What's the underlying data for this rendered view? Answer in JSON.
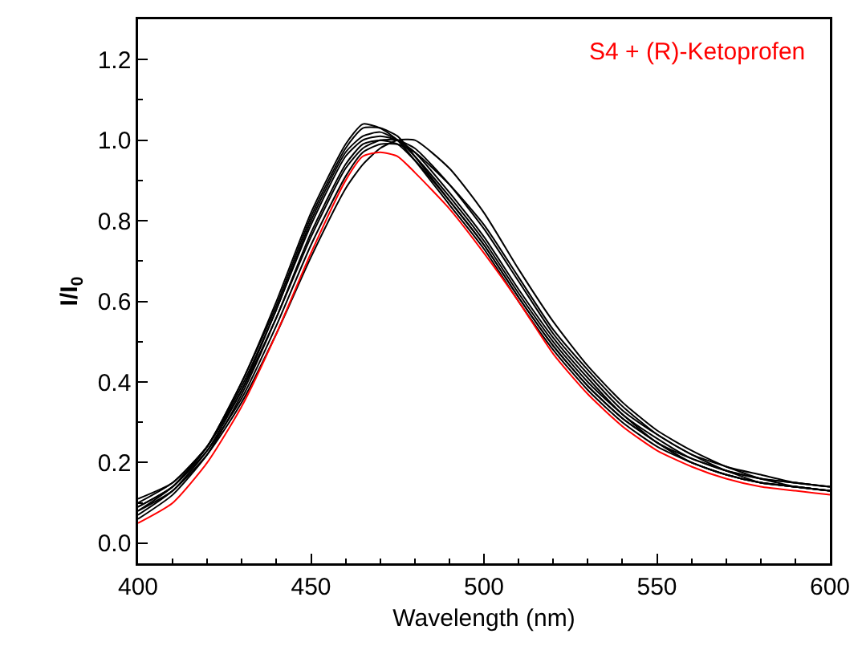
{
  "chart_data": {
    "type": "line",
    "xlabel": "Wavelength (nm)",
    "ylabel": "I/I$_{0}$",
    "x": [
      400,
      410,
      420,
      430,
      440,
      450,
      460,
      465,
      470,
      475,
      480,
      490,
      500,
      510,
      520,
      530,
      540,
      550,
      560,
      570,
      580,
      590,
      600
    ],
    "xlim": [
      400,
      600
    ],
    "xticks": [
      400,
      450,
      500,
      550,
      600
    ],
    "ylim": [
      -0.05,
      1.3
    ],
    "yticks": [
      {
        "value": 0,
        "label": "0.0"
      },
      {
        "value": 0.2,
        "label": "0.2"
      },
      {
        "value": 0.4,
        "label": "0.4"
      },
      {
        "value": 0.6,
        "label": "0.6"
      },
      {
        "value": 0.8,
        "label": "0.8"
      },
      {
        "value": 1,
        "label": "1.0"
      },
      {
        "value": 1.2,
        "label": "1.2"
      }
    ],
    "grid": false,
    "legend": false,
    "marker": "none",
    "line_style": "solid",
    "series": [
      {
        "color": "#000000",
        "values": [
          0.08,
          0.14,
          0.24,
          0.4,
          0.6,
          0.82,
          0.99,
          1.04,
          1.03,
          1.0,
          0.95,
          0.84,
          0.73,
          0.6,
          0.48,
          0.38,
          0.3,
          0.24,
          0.2,
          0.17,
          0.15,
          0.14,
          0.13
        ]
      },
      {
        "color": "#000000",
        "values": [
          0.09,
          0.14,
          0.24,
          0.4,
          0.59,
          0.81,
          0.98,
          1.03,
          1.03,
          1.01,
          0.96,
          0.85,
          0.74,
          0.61,
          0.49,
          0.39,
          0.31,
          0.25,
          0.2,
          0.17,
          0.15,
          0.14,
          0.13
        ]
      },
      {
        "color": "#000000",
        "values": [
          0.1,
          0.15,
          0.24,
          0.39,
          0.58,
          0.8,
          0.97,
          1.01,
          1.02,
          1.0,
          0.96,
          0.86,
          0.75,
          0.62,
          0.5,
          0.4,
          0.32,
          0.25,
          0.21,
          0.18,
          0.15,
          0.14,
          0.13
        ]
      },
      {
        "color": "#000000",
        "values": [
          0.07,
          0.13,
          0.23,
          0.38,
          0.58,
          0.79,
          0.96,
          1.0,
          1.01,
          1.0,
          0.97,
          0.87,
          0.76,
          0.63,
          0.51,
          0.41,
          0.32,
          0.26,
          0.21,
          0.18,
          0.16,
          0.14,
          0.13
        ]
      },
      {
        "color": "#000000",
        "values": [
          0.11,
          0.15,
          0.24,
          0.38,
          0.56,
          0.76,
          0.93,
          0.98,
          1.0,
          1.0,
          0.98,
          0.89,
          0.78,
          0.65,
          0.52,
          0.42,
          0.33,
          0.27,
          0.22,
          0.18,
          0.16,
          0.15,
          0.14
        ]
      },
      {
        "color": "#000000",
        "values": [
          0.06,
          0.12,
          0.22,
          0.37,
          0.56,
          0.77,
          0.94,
          0.99,
          1.0,
          0.99,
          0.95,
          0.85,
          0.74,
          0.61,
          0.49,
          0.39,
          0.31,
          0.25,
          0.2,
          0.17,
          0.15,
          0.14,
          0.13
        ]
      },
      {
        "color": "#000000",
        "values": [
          0.09,
          0.14,
          0.23,
          0.36,
          0.54,
          0.74,
          0.91,
          0.97,
          0.99,
          0.99,
          0.97,
          0.89,
          0.79,
          0.66,
          0.53,
          0.43,
          0.34,
          0.27,
          0.22,
          0.19,
          0.16,
          0.15,
          0.14
        ]
      },
      {
        "color": "#000000",
        "values": [
          0.08,
          0.13,
          0.22,
          0.35,
          0.52,
          0.71,
          0.88,
          0.94,
          0.98,
          1.0,
          1.0,
          0.93,
          0.82,
          0.68,
          0.55,
          0.44,
          0.35,
          0.28,
          0.23,
          0.19,
          0.17,
          0.15,
          0.14
        ]
      },
      {
        "name": "S4 + (R)-Ketoprofen",
        "color": "#ff0000",
        "values": [
          0.05,
          0.1,
          0.2,
          0.34,
          0.52,
          0.72,
          0.9,
          0.96,
          0.97,
          0.96,
          0.92,
          0.83,
          0.72,
          0.6,
          0.47,
          0.37,
          0.29,
          0.23,
          0.19,
          0.16,
          0.14,
          0.13,
          0.12
        ]
      }
    ]
  }
}
